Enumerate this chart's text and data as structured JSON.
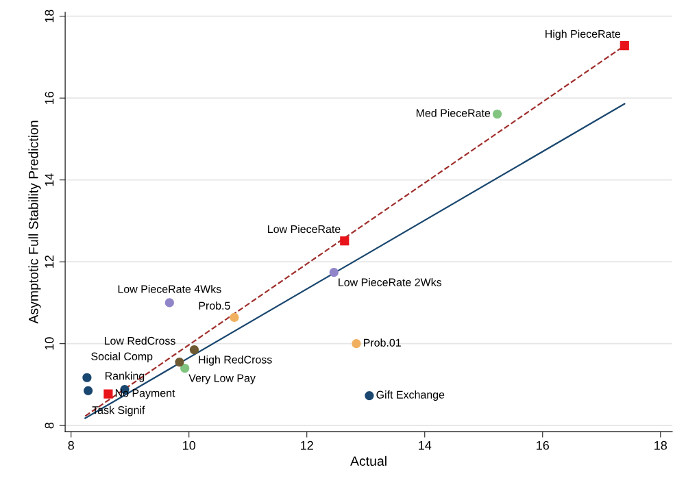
{
  "chart_data": {
    "type": "scatter",
    "xlabel": "Actual",
    "ylabel": "Asymptotic Full Stability Prediction",
    "xlim": [
      7.9,
      18.2
    ],
    "ylim": [
      7.85,
      18.1
    ],
    "xticks": [
      8,
      10,
      12,
      14,
      16,
      18
    ],
    "yticks": [
      8,
      10,
      12,
      14,
      16,
      18
    ],
    "grid": "y",
    "series": [
      {
        "type": "line",
        "color": "#1a476f",
        "x": [
          8.24,
          17.39
        ],
        "values": [
          8.18,
          15.86
        ],
        "line_style": "solid",
        "marker": "none"
      },
      {
        "type": "line",
        "color": "#a0302d",
        "x": [
          8.24,
          17.39
        ],
        "values": [
          8.23,
          17.28
        ],
        "line_style": "dashed",
        "marker": "none"
      },
      {
        "color": "#1a476f",
        "marker": "circle",
        "x": [
          8.27,
          8.29,
          8.91,
          13.06
        ],
        "values": [
          9.17,
          8.85,
          8.88,
          8.73
        ]
      },
      {
        "color": "#80c47f",
        "marker": "circle",
        "x": [
          15.23,
          9.93
        ],
        "values": [
          15.61,
          9.4
        ]
      },
      {
        "color": "#9085c9",
        "marker": "circle",
        "x": [
          12.46,
          9.67
        ],
        "values": [
          11.74,
          11.0
        ]
      },
      {
        "color": "#f0b060",
        "marker": "circle",
        "x": [
          10.77,
          12.84
        ],
        "values": [
          10.64,
          10.0
        ]
      },
      {
        "color": "#6e5a32",
        "marker": "circle",
        "x": [
          10.09,
          9.84
        ],
        "values": [
          9.85,
          9.55
        ]
      },
      {
        "color": "#e8141a",
        "marker": "square",
        "x": [
          17.39,
          12.64,
          8.63
        ],
        "values": [
          17.28,
          12.51,
          8.77
        ]
      }
    ],
    "annotations": [
      {
        "text": "High PieceRate",
        "x": 17.39,
        "y": 17.28
      },
      {
        "text": "Med PieceRate",
        "x": 15.23,
        "y": 15.61
      },
      {
        "text": "Low PieceRate",
        "x": 12.64,
        "y": 12.51
      },
      {
        "text": "Low PieceRate 2Wks",
        "x": 12.46,
        "y": 11.74
      },
      {
        "text": "Low PieceRate 4Wks",
        "x": 9.67,
        "y": 11.0
      },
      {
        "text": "Prob.5",
        "x": 10.77,
        "y": 10.64
      },
      {
        "text": "Prob.01",
        "x": 12.84,
        "y": 10.0
      },
      {
        "text": "High RedCross",
        "x": 10.09,
        "y": 9.85
      },
      {
        "text": "Low RedCross",
        "x": 9.84,
        "y": 9.55
      },
      {
        "text": "Very Low Pay",
        "x": 9.93,
        "y": 9.4
      },
      {
        "text": "Social Comp",
        "x": 8.27,
        "y": 9.17
      },
      {
        "text": "Task Signif",
        "x": 8.29,
        "y": 8.85
      },
      {
        "text": "Ranking",
        "x": 8.91,
        "y": 8.88
      },
      {
        "text": "No Payment",
        "x": 8.63,
        "y": 8.77
      },
      {
        "text": "Gift Exchange",
        "x": 13.06,
        "y": 8.73
      }
    ]
  }
}
